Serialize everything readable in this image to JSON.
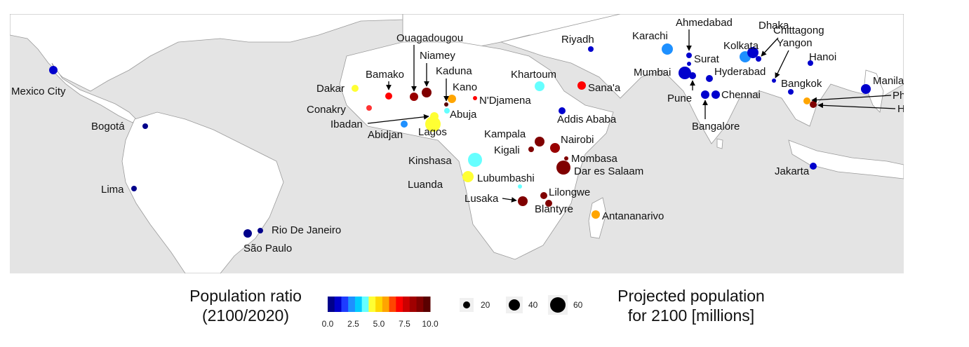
{
  "ratio_legend": {
    "title_line1": "Population ratio",
    "title_line2": "(2100/2020)",
    "ticks": [
      "0.0",
      "2.5",
      "5.0",
      "7.5",
      "10.0"
    ],
    "colors": [
      "#00008b",
      "#0000cd",
      "#1e3cff",
      "#1e90ff",
      "#00ccff",
      "#66ffff",
      "#ffff33",
      "#ffd700",
      "#ffa500",
      "#ff4500",
      "#ff0000",
      "#cc0000",
      "#a00000",
      "#800000",
      "#5a0000"
    ]
  },
  "size_legend": {
    "title_line1": "Projected population",
    "title_line2": "for 2100 [millions]",
    "sizes": [
      "20",
      "40",
      "60"
    ]
  },
  "cities": [
    {
      "name": "Mexico City",
      "color": "#0000cd"
    },
    {
      "name": "Bogotá",
      "color": "#00008b"
    },
    {
      "name": "Lima",
      "color": "#00008b"
    },
    {
      "name": "Rio De Janeiro",
      "color": "#00008b"
    },
    {
      "name": "São Paulo",
      "color": "#00008b"
    },
    {
      "name": "Dakar",
      "color": "#ffff33"
    },
    {
      "name": "Conakry",
      "color": "#ff3333"
    },
    {
      "name": "Bamako",
      "color": "#ff0000"
    },
    {
      "name": "Ouagadougou",
      "color": "#990000"
    },
    {
      "name": "Niamey",
      "color": "#800000"
    },
    {
      "name": "Kaduna",
      "color": "#5a0000"
    },
    {
      "name": "Kano",
      "color": "#ffa500"
    },
    {
      "name": "N'Djamena",
      "color": "#ff0000"
    },
    {
      "name": "Abuja",
      "color": "#66ffff"
    },
    {
      "name": "Ibadan",
      "color": "#ffff33"
    },
    {
      "name": "Lagos",
      "color": "#ffff33"
    },
    {
      "name": "Abidjan",
      "color": "#1e90ff"
    },
    {
      "name": "Khartoum",
      "color": "#66ffff"
    },
    {
      "name": "Riyadh",
      "color": "#0000cd"
    },
    {
      "name": "Sana'a",
      "color": "#ff0000"
    },
    {
      "name": "Addis Ababa",
      "color": "#0000cd"
    },
    {
      "name": "Kampala",
      "color": "#800000"
    },
    {
      "name": "Nairobi",
      "color": "#990000"
    },
    {
      "name": "Kigali",
      "color": "#800000"
    },
    {
      "name": "Mombasa",
      "color": "#800000"
    },
    {
      "name": "Dar es Salaam",
      "color": "#800000"
    },
    {
      "name": "Kinshasa",
      "color": "#66ffff"
    },
    {
      "name": "Luanda",
      "color": "#ffff33"
    },
    {
      "name": "Lubumbashi",
      "color": "#66ffff"
    },
    {
      "name": "Lilongwe",
      "color": "#800000"
    },
    {
      "name": "Lusaka",
      "color": "#800000"
    },
    {
      "name": "Blantyre",
      "color": "#800000"
    },
    {
      "name": "Antananarivo",
      "color": "#ffa500"
    },
    {
      "name": "Karachi",
      "color": "#1e90ff"
    },
    {
      "name": "Ahmedabad",
      "color": "#0000cd"
    },
    {
      "name": "Surat",
      "color": "#0000cd"
    },
    {
      "name": "Mumbai",
      "color": "#0000cd"
    },
    {
      "name": "Hyderabad",
      "color": "#0000cd"
    },
    {
      "name": "Pune",
      "color": "#0000cd"
    },
    {
      "name": "Chennai",
      "color": "#0000cd"
    },
    {
      "name": "Bangalore",
      "color": "#0000cd"
    },
    {
      "name": "Kolkata",
      "color": "#1e90ff"
    },
    {
      "name": "Dhaka",
      "color": "#0000cd"
    },
    {
      "name": "Chittagong",
      "color": "#0000cd"
    },
    {
      "name": "Yangon",
      "color": "#0000cd"
    },
    {
      "name": "Hanoi",
      "color": "#0000cd"
    },
    {
      "name": "Bangkok",
      "color": "#0000cd"
    },
    {
      "name": "Manila",
      "color": "#0000cd"
    },
    {
      "name": "Phnom Penh",
      "color": "#ffa500"
    },
    {
      "name": "Ho Chi Minh",
      "color": "#800000"
    },
    {
      "name": "Jakarta",
      "color": "#0000cd"
    }
  ]
}
